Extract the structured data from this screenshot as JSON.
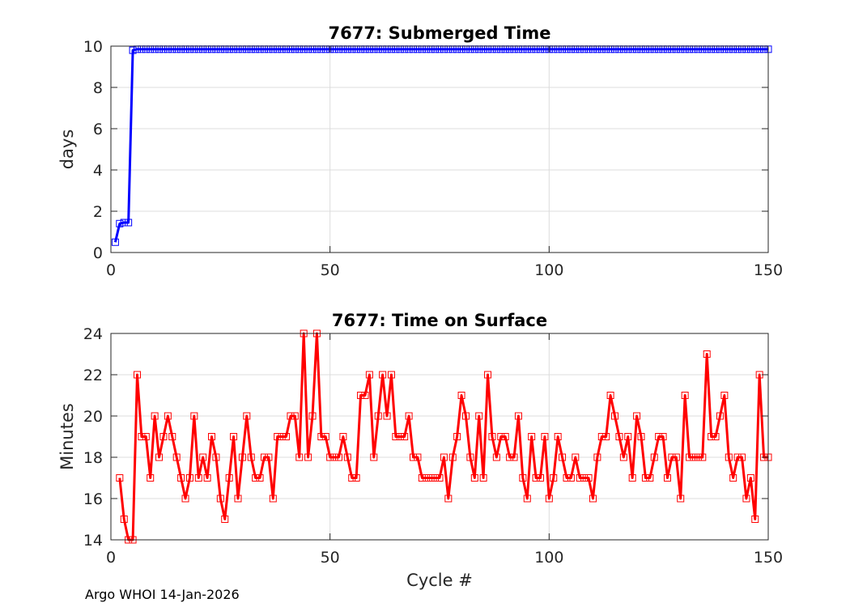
{
  "footer": "Argo WHOI 14-Jan-2026",
  "chart_data": [
    {
      "type": "line",
      "title": "7677: Submerged Time",
      "xlabel": "",
      "ylabel": "days",
      "xlim": [
        0,
        150
      ],
      "ylim": [
        0,
        10
      ],
      "xticks": [
        0,
        50,
        100,
        150
      ],
      "yticks": [
        0,
        2,
        4,
        6,
        8,
        10
      ],
      "grid": true,
      "marker": "square",
      "color": "#0000ff",
      "series": [
        {
          "x": [
            1,
            2,
            3,
            4,
            5,
            6,
            7,
            8,
            9,
            10,
            11,
            12,
            13,
            14,
            15,
            16,
            17,
            18,
            19,
            20,
            21,
            22,
            23,
            24,
            25,
            26,
            27,
            28,
            29,
            30,
            31,
            32,
            33,
            34,
            35,
            36,
            37,
            38,
            39,
            40,
            41,
            42,
            43,
            44,
            45,
            46,
            47,
            48,
            49,
            50,
            51,
            52,
            53,
            54,
            55,
            56,
            57,
            58,
            59,
            60,
            61,
            62,
            63,
            64,
            65,
            66,
            67,
            68,
            69,
            70,
            71,
            72,
            73,
            74,
            75,
            76,
            77,
            78,
            79,
            80,
            81,
            82,
            83,
            84,
            85,
            86,
            87,
            88,
            89,
            90,
            91,
            92,
            93,
            94,
            95,
            96,
            97,
            98,
            99,
            100,
            101,
            102,
            103,
            104,
            105,
            106,
            107,
            108,
            109,
            110,
            111,
            112,
            113,
            114,
            115,
            116,
            117,
            118,
            119,
            120,
            121,
            122,
            123,
            124,
            125,
            126,
            127,
            128,
            129,
            130,
            131,
            132,
            133,
            134,
            135,
            136,
            137,
            138,
            139,
            140,
            141,
            142,
            143,
            144,
            145,
            146,
            147,
            148,
            149,
            150
          ],
          "y": [
            0.5,
            1.4,
            1.45,
            1.45,
            9.8,
            9.85,
            9.85,
            9.85,
            9.85,
            9.85,
            9.85,
            9.85,
            9.85,
            9.85,
            9.85,
            9.85,
            9.85,
            9.85,
            9.85,
            9.85,
            9.85,
            9.85,
            9.85,
            9.85,
            9.85,
            9.85,
            9.85,
            9.85,
            9.85,
            9.85,
            9.85,
            9.85,
            9.85,
            9.85,
            9.85,
            9.85,
            9.85,
            9.85,
            9.85,
            9.85,
            9.85,
            9.85,
            9.85,
            9.85,
            9.85,
            9.85,
            9.85,
            9.85,
            9.85,
            9.85,
            9.85,
            9.85,
            9.85,
            9.85,
            9.85,
            9.85,
            9.85,
            9.85,
            9.85,
            9.85,
            9.85,
            9.85,
            9.85,
            9.85,
            9.85,
            9.85,
            9.85,
            9.85,
            9.85,
            9.85,
            9.85,
            9.85,
            9.85,
            9.85,
            9.85,
            9.85,
            9.85,
            9.85,
            9.85,
            9.85,
            9.85,
            9.85,
            9.85,
            9.85,
            9.85,
            9.85,
            9.85,
            9.85,
            9.85,
            9.85,
            9.85,
            9.85,
            9.85,
            9.85,
            9.85,
            9.85,
            9.85,
            9.85,
            9.85,
            9.85,
            9.85,
            9.85,
            9.85,
            9.85,
            9.85,
            9.85,
            9.85,
            9.85,
            9.85,
            9.85,
            9.85,
            9.85,
            9.85,
            9.85,
            9.85,
            9.85,
            9.85,
            9.85,
            9.85,
            9.85,
            9.85,
            9.85,
            9.85,
            9.85,
            9.85,
            9.85,
            9.85,
            9.85,
            9.85,
            9.85,
            9.85,
            9.85,
            9.85,
            9.85,
            9.85,
            9.85,
            9.85,
            9.85,
            9.85,
            9.85,
            9.85,
            9.85,
            9.85,
            9.85,
            9.85,
            9.85,
            9.85,
            9.85,
            9.85,
            9.85
          ]
        }
      ]
    },
    {
      "type": "line",
      "title": "7677: Time on Surface",
      "xlabel": "Cycle #",
      "ylabel": "Minutes",
      "xlim": [
        0,
        150
      ],
      "ylim": [
        14,
        24
      ],
      "xticks": [
        0,
        50,
        100,
        150
      ],
      "yticks": [
        14,
        16,
        18,
        20,
        22,
        24
      ],
      "grid": true,
      "marker": "square",
      "color": "#ff0000",
      "series": [
        {
          "x": [
            2,
            3,
            4,
            5,
            6,
            7,
            8,
            9,
            10,
            11,
            12,
            13,
            14,
            15,
            16,
            17,
            18,
            19,
            20,
            21,
            22,
            23,
            24,
            25,
            26,
            27,
            28,
            29,
            30,
            31,
            32,
            33,
            34,
            35,
            36,
            37,
            38,
            39,
            40,
            41,
            42,
            43,
            44,
            45,
            46,
            47,
            48,
            49,
            50,
            51,
            52,
            53,
            54,
            55,
            56,
            57,
            58,
            59,
            60,
            61,
            62,
            63,
            64,
            65,
            66,
            67,
            68,
            69,
            70,
            71,
            72,
            73,
            74,
            75,
            76,
            77,
            78,
            79,
            80,
            81,
            82,
            83,
            84,
            85,
            86,
            87,
            88,
            89,
            90,
            91,
            92,
            93,
            94,
            95,
            96,
            97,
            98,
            99,
            100,
            101,
            102,
            103,
            104,
            105,
            106,
            107,
            108,
            109,
            110,
            111,
            112,
            113,
            114,
            115,
            116,
            117,
            118,
            119,
            120,
            121,
            122,
            123,
            124,
            125,
            126,
            127,
            128,
            129,
            130,
            131,
            132,
            133,
            134,
            135,
            136,
            137,
            138,
            139,
            140,
            141,
            142,
            143,
            144,
            145,
            146,
            147,
            148,
            149,
            150
          ],
          "y": [
            17,
            15,
            14,
            14,
            22,
            19,
            19,
            17,
            20,
            18,
            19,
            20,
            19,
            18,
            17,
            16,
            17,
            20,
            17,
            18,
            17,
            19,
            18,
            16,
            15,
            17,
            19,
            16,
            18,
            20,
            18,
            17,
            17,
            18,
            18,
            16,
            19,
            19,
            19,
            20,
            20,
            18,
            24,
            18,
            20,
            24,
            19,
            19,
            18,
            18,
            18,
            19,
            18,
            17,
            17,
            21,
            21,
            22,
            18,
            20,
            22,
            20,
            22,
            19,
            19,
            19,
            20,
            18,
            18,
            17,
            17,
            17,
            17,
            17,
            18,
            16,
            18,
            19,
            21,
            20,
            18,
            17,
            20,
            17,
            22,
            19,
            18,
            19,
            19,
            18,
            18,
            20,
            17,
            16,
            19,
            17,
            17,
            19,
            16,
            17,
            19,
            18,
            17,
            17,
            18,
            17,
            17,
            17,
            16,
            18,
            19,
            19,
            21,
            20,
            19,
            18,
            19,
            17,
            20,
            19,
            17,
            17,
            18,
            19,
            19,
            17,
            18,
            18,
            16,
            21,
            18,
            18,
            18,
            18,
            23,
            19,
            19,
            20,
            21,
            18,
            17,
            18,
            18,
            16,
            17,
            15,
            22,
            18,
            18
          ]
        }
      ]
    }
  ]
}
